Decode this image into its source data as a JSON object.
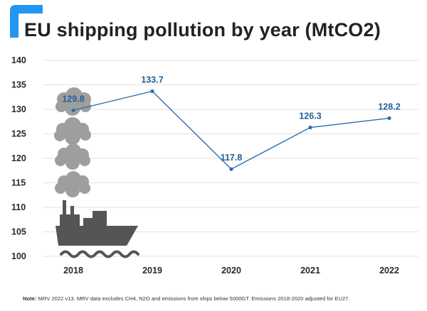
{
  "title": "EU shipping pollution by year (MtCO2)",
  "note": {
    "label": "Note:",
    "text": "MRV 2022 v13. MRV data excludes CH4, N2O and emissions from ships below 5000GT. Emissions 2018-2020 adjusted for EU27."
  },
  "colors": {
    "accent": "#2196f3",
    "line": "#2a6fb0",
    "label": "#1f5f9a",
    "smoke": "#9e9e9e",
    "ship": "#555555",
    "grid": "#e2e2e2"
  },
  "icons": [
    "smoke-cloud-icon",
    "ship-icon",
    "waves-icon"
  ],
  "chart_data": {
    "type": "line",
    "title": "EU shipping pollution by year (MtCO2)",
    "categories": [
      "2018",
      "2019",
      "2020",
      "2021",
      "2022"
    ],
    "series": [
      {
        "values": [
          129.8,
          133.7,
          117.8,
          126.3,
          128.2
        ]
      }
    ],
    "data_labels": [
      "129.8",
      "133.7",
      "117.8",
      "126.3",
      "128.2"
    ],
    "y_ticks": [
      "100",
      "105",
      "110",
      "115",
      "120",
      "125",
      "130",
      "135",
      "140"
    ],
    "ylim": [
      100,
      140
    ],
    "grid": true,
    "legend": "none"
  }
}
